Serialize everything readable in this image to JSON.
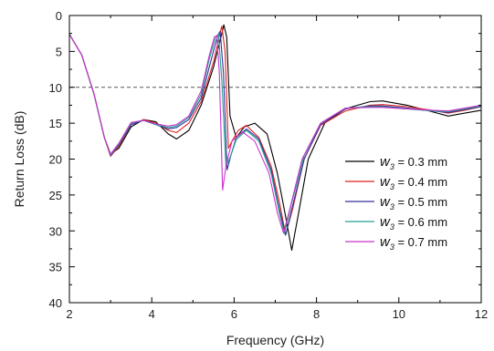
{
  "chart_data": {
    "type": "line",
    "title": "",
    "xlabel": "Frequency (GHz)",
    "ylabel": "Return Loss (dB)",
    "xlim": [
      2,
      12
    ],
    "ylim": [
      0,
      40
    ],
    "y_inverted": true,
    "x_ticks": [
      2,
      4,
      6,
      8,
      10,
      12
    ],
    "y_ticks": [
      0,
      5,
      10,
      15,
      20,
      25,
      30,
      35,
      40
    ],
    "grid": false,
    "legend_position": "right",
    "reference_line": {
      "y": 10,
      "style": "dashed",
      "color": "#555555"
    },
    "series": [
      {
        "name_var": "w",
        "name_sub": "3",
        "name_rest": " = 0.3 mm",
        "color": "#000000",
        "points": [
          [
            2,
            2.6
          ],
          [
            2.3,
            5.5
          ],
          [
            2.6,
            11
          ],
          [
            2.85,
            17
          ],
          [
            3.0,
            19.3
          ],
          [
            3.2,
            18.5
          ],
          [
            3.5,
            15.5
          ],
          [
            3.8,
            14.5
          ],
          [
            4.1,
            14.8
          ],
          [
            4.4,
            16.5
          ],
          [
            4.6,
            17.2
          ],
          [
            4.9,
            16
          ],
          [
            5.2,
            12.5
          ],
          [
            5.5,
            7.2
          ],
          [
            5.7,
            2.5
          ],
          [
            5.75,
            1.3
          ],
          [
            5.82,
            3
          ],
          [
            5.9,
            14
          ],
          [
            6.05,
            17
          ],
          [
            6.25,
            15.5
          ],
          [
            6.5,
            15
          ],
          [
            6.8,
            16.5
          ],
          [
            7.05,
            22
          ],
          [
            7.25,
            28
          ],
          [
            7.4,
            32.7
          ],
          [
            7.55,
            28
          ],
          [
            7.8,
            20
          ],
          [
            8.2,
            15
          ],
          [
            8.7,
            13
          ],
          [
            9.3,
            12
          ],
          [
            9.6,
            11.9
          ],
          [
            10.2,
            12.5
          ],
          [
            10.8,
            13.4
          ],
          [
            11.2,
            14
          ],
          [
            11.6,
            13.6
          ],
          [
            12,
            13.2
          ]
        ]
      },
      {
        "name_var": "w",
        "name_sub": "3",
        "name_rest": " = 0.4 mm",
        "color": "#dd2222",
        "points": [
          [
            2,
            2.6
          ],
          [
            2.3,
            5.5
          ],
          [
            2.6,
            11
          ],
          [
            2.85,
            17
          ],
          [
            3.0,
            19.6
          ],
          [
            3.2,
            18.2
          ],
          [
            3.5,
            15.2
          ],
          [
            3.8,
            14.5
          ],
          [
            4.1,
            15
          ],
          [
            4.4,
            16
          ],
          [
            4.6,
            16.3
          ],
          [
            4.9,
            15
          ],
          [
            5.2,
            12
          ],
          [
            5.5,
            6.5
          ],
          [
            5.65,
            2.6
          ],
          [
            5.7,
            1.5
          ],
          [
            5.78,
            5
          ],
          [
            5.86,
            18.5
          ],
          [
            5.95,
            17.5
          ],
          [
            6.1,
            16
          ],
          [
            6.3,
            15.3
          ],
          [
            6.6,
            17
          ],
          [
            6.9,
            21
          ],
          [
            7.1,
            26
          ],
          [
            7.25,
            30.5
          ],
          [
            7.42,
            27
          ],
          [
            7.7,
            20
          ],
          [
            8.1,
            15.3
          ],
          [
            8.7,
            13.3
          ],
          [
            9.3,
            12.5
          ],
          [
            9.6,
            12.4
          ],
          [
            10.2,
            12.7
          ],
          [
            10.8,
            13.2
          ],
          [
            11.2,
            13.6
          ],
          [
            11.6,
            13.2
          ],
          [
            12,
            12.7
          ]
        ]
      },
      {
        "name_var": "w",
        "name_sub": "3",
        "name_rest": " = 0.5 mm",
        "color": "#333399",
        "points": [
          [
            2,
            2.6
          ],
          [
            2.3,
            5.5
          ],
          [
            2.6,
            11
          ],
          [
            2.85,
            17
          ],
          [
            3.0,
            19.5
          ],
          [
            3.2,
            18
          ],
          [
            3.5,
            15.2
          ],
          [
            3.8,
            14.6
          ],
          [
            4.1,
            15.2
          ],
          [
            4.4,
            15.8
          ],
          [
            4.6,
            15.6
          ],
          [
            4.9,
            14.5
          ],
          [
            5.2,
            11.5
          ],
          [
            5.45,
            6
          ],
          [
            5.6,
            2.8
          ],
          [
            5.66,
            2.2
          ],
          [
            5.74,
            8
          ],
          [
            5.83,
            21.5
          ],
          [
            5.92,
            19.5
          ],
          [
            6.05,
            17
          ],
          [
            6.3,
            15.8
          ],
          [
            6.6,
            17.2
          ],
          [
            6.9,
            21.5
          ],
          [
            7.1,
            27
          ],
          [
            7.25,
            30.6
          ],
          [
            7.4,
            27
          ],
          [
            7.7,
            20
          ],
          [
            8.1,
            15.2
          ],
          [
            8.7,
            13
          ],
          [
            9.3,
            12.6
          ],
          [
            9.6,
            12.6
          ],
          [
            10.2,
            12.9
          ],
          [
            10.8,
            13.3
          ],
          [
            11.2,
            13.5
          ],
          [
            11.6,
            13.1
          ],
          [
            12,
            12.7
          ]
        ]
      },
      {
        "name_var": "w",
        "name_sub": "3",
        "name_rest": " = 0.6 mm",
        "color": "#22a090",
        "points": [
          [
            2,
            2.6
          ],
          [
            2.3,
            5.5
          ],
          [
            2.6,
            11
          ],
          [
            2.85,
            17
          ],
          [
            3.0,
            19.4
          ],
          [
            3.2,
            17.9
          ],
          [
            3.5,
            15
          ],
          [
            3.8,
            14.6
          ],
          [
            4.1,
            15.2
          ],
          [
            4.4,
            15.6
          ],
          [
            4.6,
            15.4
          ],
          [
            4.9,
            14.2
          ],
          [
            5.2,
            11
          ],
          [
            5.4,
            6
          ],
          [
            5.55,
            3
          ],
          [
            5.62,
            2.6
          ],
          [
            5.7,
            9
          ],
          [
            5.8,
            21
          ],
          [
            5.9,
            19.8
          ],
          [
            6.05,
            17.3
          ],
          [
            6.3,
            16
          ],
          [
            6.6,
            17.5
          ],
          [
            6.9,
            22
          ],
          [
            7.1,
            27.5
          ],
          [
            7.22,
            30.4
          ],
          [
            7.38,
            26.5
          ],
          [
            7.7,
            19.5
          ],
          [
            8.1,
            15
          ],
          [
            8.7,
            12.9
          ],
          [
            9.3,
            12.7
          ],
          [
            9.6,
            12.7
          ],
          [
            10.2,
            13
          ],
          [
            10.8,
            13.3
          ],
          [
            11.2,
            13.4
          ],
          [
            11.6,
            13
          ],
          [
            12,
            12.6
          ]
        ]
      },
      {
        "name_var": "w",
        "name_sub": "3",
        "name_rest": " = 0.7 mm",
        "color": "#cc33cc",
        "points": [
          [
            2,
            2.6
          ],
          [
            2.3,
            5.5
          ],
          [
            2.6,
            11
          ],
          [
            2.85,
            17
          ],
          [
            3.0,
            19.3
          ],
          [
            3.2,
            17.8
          ],
          [
            3.5,
            14.9
          ],
          [
            3.8,
            14.6
          ],
          [
            4.1,
            15.1
          ],
          [
            4.4,
            15.4
          ],
          [
            4.6,
            15.2
          ],
          [
            4.9,
            14
          ],
          [
            5.2,
            10.5
          ],
          [
            5.4,
            5.5
          ],
          [
            5.52,
            3
          ],
          [
            5.58,
            2.8
          ],
          [
            5.64,
            8
          ],
          [
            5.72,
            24.3
          ],
          [
            5.8,
            21
          ],
          [
            5.95,
            17.5
          ],
          [
            6.2,
            16.2
          ],
          [
            6.5,
            17.5
          ],
          [
            6.85,
            22
          ],
          [
            7.05,
            27.5
          ],
          [
            7.2,
            30.3
          ],
          [
            7.35,
            27
          ],
          [
            7.65,
            20
          ],
          [
            8.1,
            15
          ],
          [
            8.7,
            12.9
          ],
          [
            9.3,
            12.8
          ],
          [
            9.6,
            12.8
          ],
          [
            10.2,
            13
          ],
          [
            10.8,
            13.2
          ],
          [
            11.2,
            13.3
          ],
          [
            11.6,
            12.9
          ],
          [
            12,
            12.5
          ]
        ]
      }
    ]
  }
}
